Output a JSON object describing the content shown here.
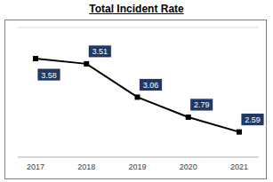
{
  "chart_data": {
    "type": "line",
    "title": "Total Incident Rate",
    "categories": [
      "2017",
      "2018",
      "2019",
      "2020",
      "2021"
    ],
    "values": [
      3.58,
      3.51,
      3.06,
      2.79,
      2.59
    ],
    "color": "#000000",
    "marker": "square",
    "ylim": [
      2.25,
      4.0
    ],
    "yticks": [
      2.25,
      2.5,
      2.75,
      3.0,
      3.25,
      3.5,
      3.75,
      4.0
    ],
    "grid": true,
    "data_labels": true,
    "tick_labels": "x"
  }
}
